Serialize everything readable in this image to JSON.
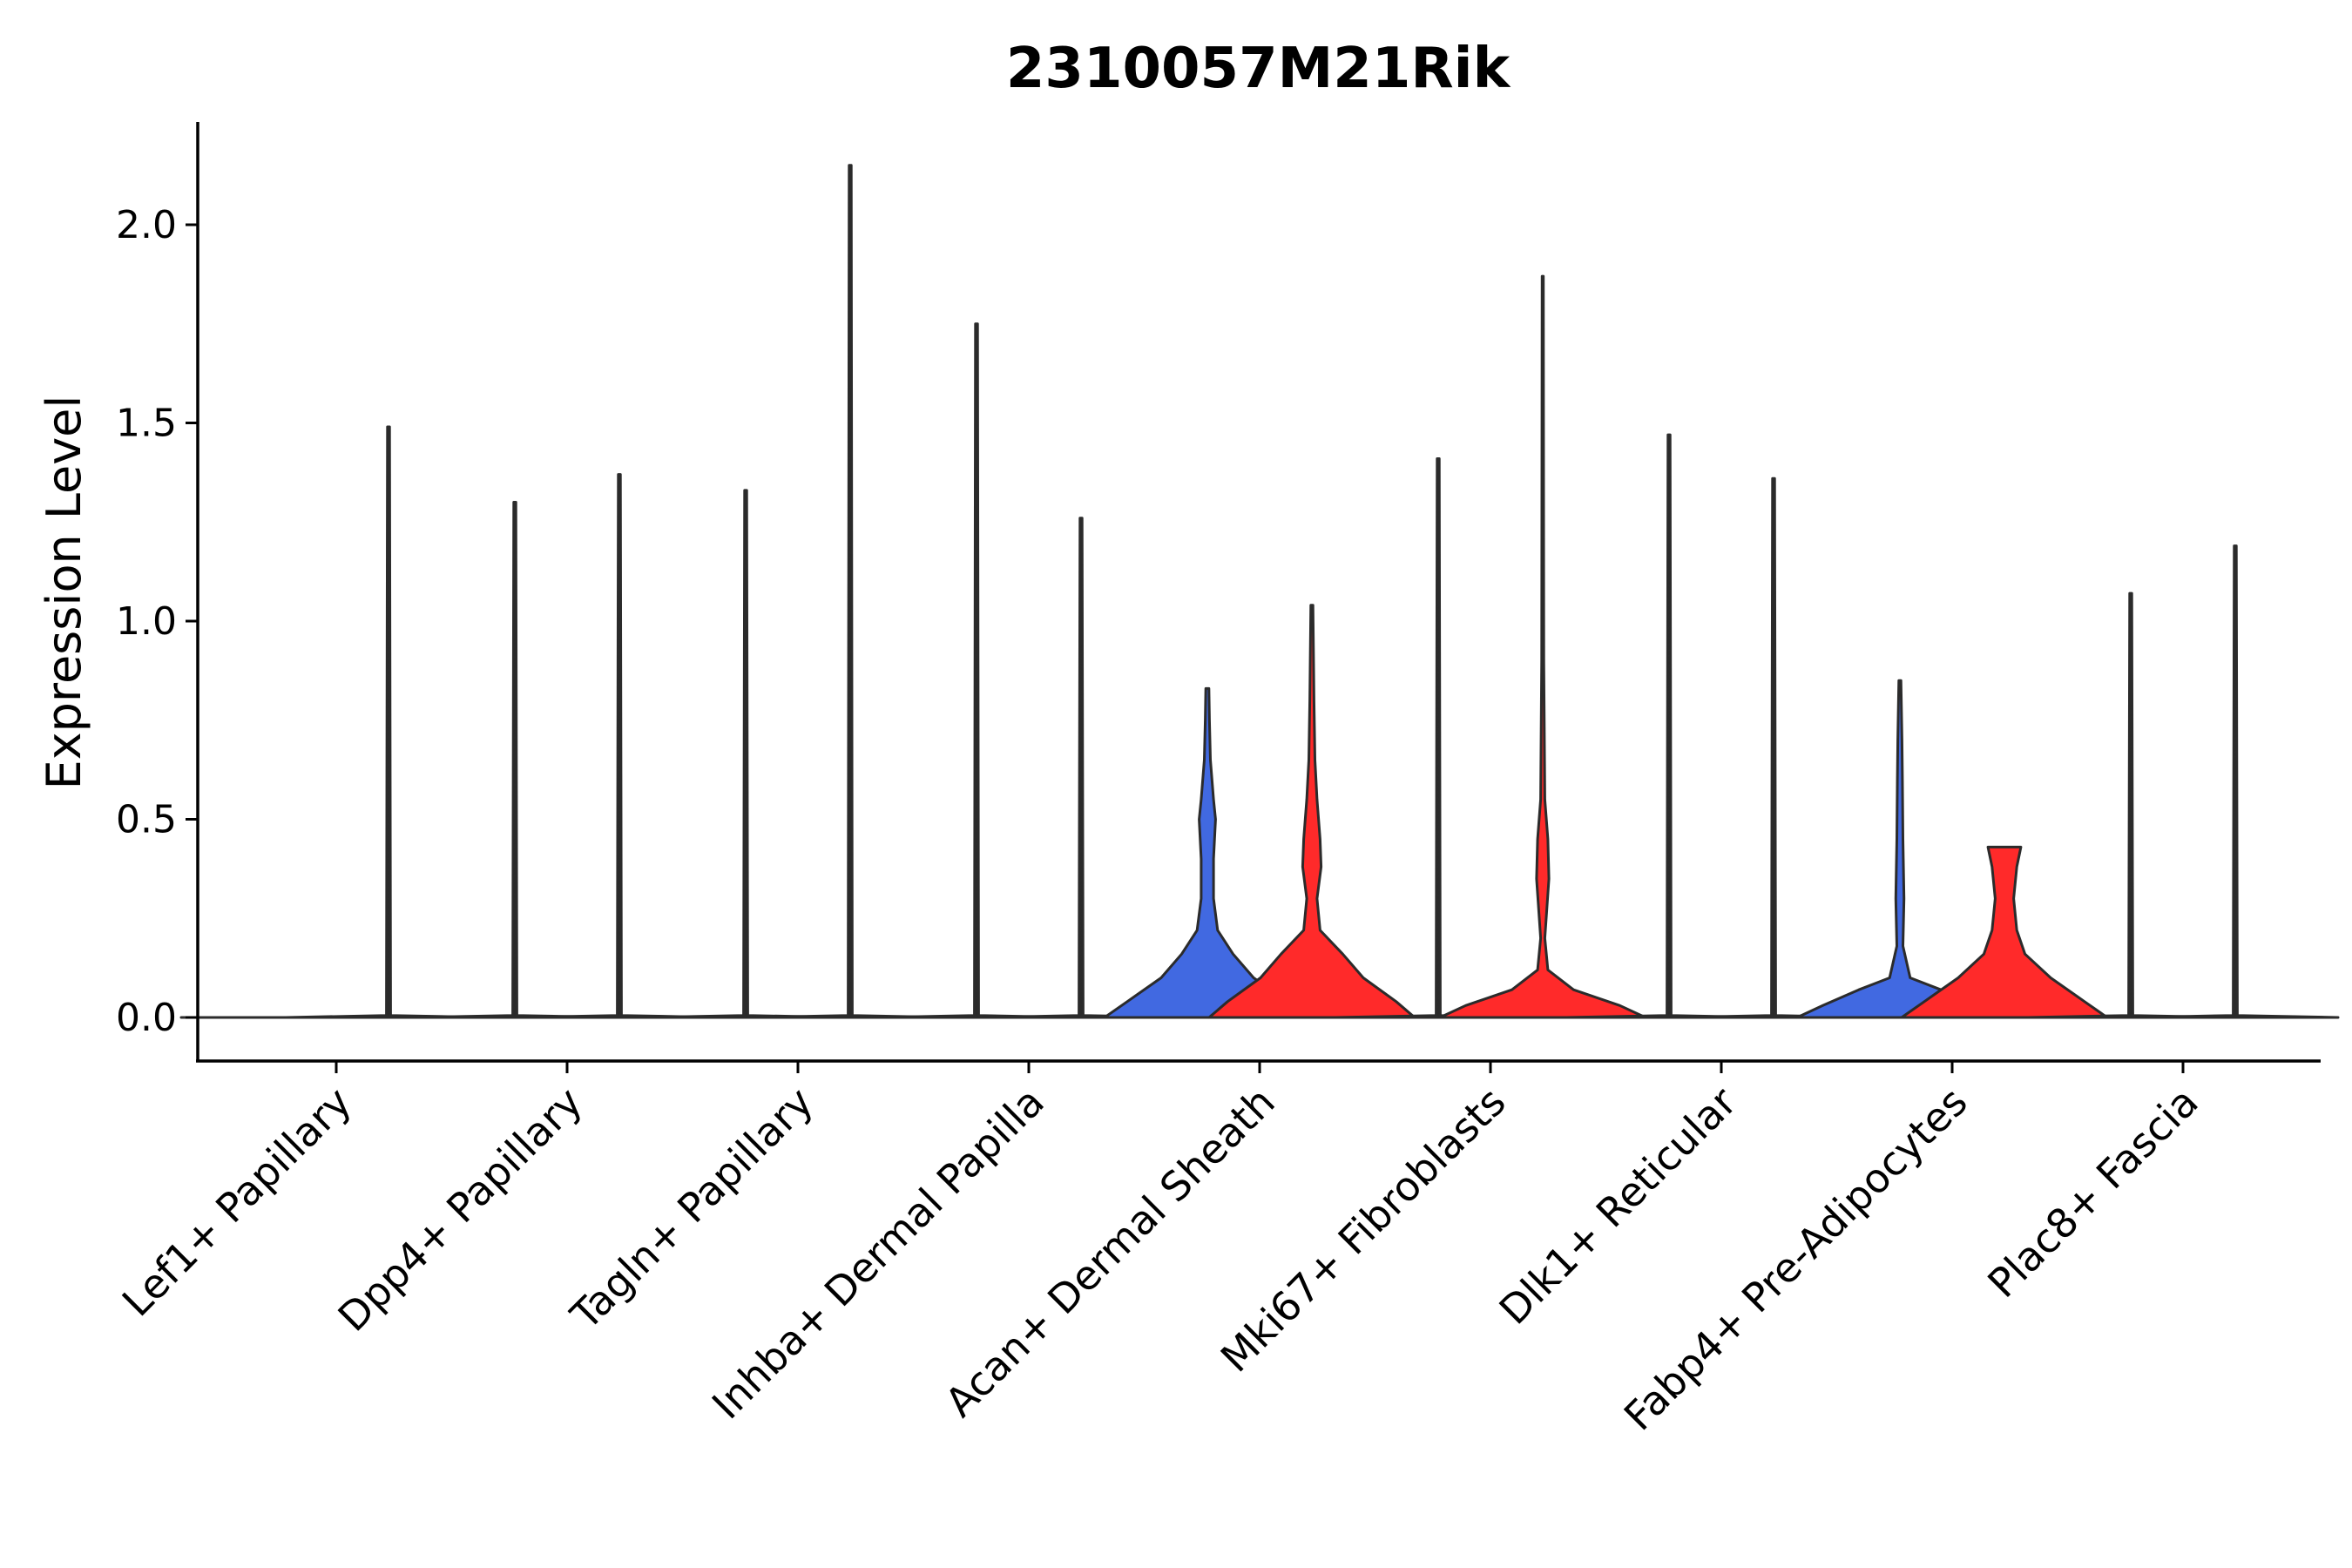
{
  "chart_data": {
    "type": "violin",
    "title": "2310057M21Rik",
    "xlabel": "",
    "ylabel": "Expression Level",
    "ylim": [
      -0.11,
      2.25
    ],
    "yticks": [
      "0.0",
      "0.5",
      "1.0",
      "1.5",
      "2.0"
    ],
    "ytick_values": [
      0.0,
      0.5,
      1.0,
      1.5,
      2.0
    ],
    "grid": false,
    "legend": "none",
    "group_colors": [
      "#4169E1",
      "#FF2A2A"
    ],
    "categories": [
      "Lef1+ Papillary",
      "Dpp4+ Papillary",
      "Tagln+ Papillary",
      "Inhba+ Dermal Papilla",
      "Acan+ Dermal Sheath",
      "Mki67+ Fibroblasts",
      "Dlk1+ Reticular",
      "Fabp4+ Pre-Adipocytes",
      "Plac8+ Fascia"
    ],
    "violins": [
      {
        "category": 0,
        "group": 0,
        "max": 0.0,
        "profile": [
          [
            0,
            1
          ]
        ]
      },
      {
        "category": 0,
        "group": 1,
        "max": 1.49,
        "profile": [
          [
            0,
            1
          ],
          [
            0.005,
            0.02
          ],
          [
            1.49,
            0.01
          ]
        ]
      },
      {
        "category": 1,
        "group": 0,
        "max": 1.3,
        "profile": [
          [
            0,
            1
          ],
          [
            0.005,
            0.02
          ],
          [
            1.3,
            0.01
          ]
        ]
      },
      {
        "category": 1,
        "group": 1,
        "max": 1.37,
        "profile": [
          [
            0,
            1
          ],
          [
            0.005,
            0.02
          ],
          [
            1.37,
            0.01
          ]
        ]
      },
      {
        "category": 2,
        "group": 0,
        "max": 1.33,
        "profile": [
          [
            0,
            1
          ],
          [
            0.005,
            0.02
          ],
          [
            1.33,
            0.01
          ]
        ]
      },
      {
        "category": 2,
        "group": 1,
        "max": 2.15,
        "profile": [
          [
            0,
            1
          ],
          [
            0.005,
            0.02
          ],
          [
            2.15,
            0.01
          ]
        ]
      },
      {
        "category": 3,
        "group": 0,
        "max": 1.75,
        "profile": [
          [
            0,
            1
          ],
          [
            0.005,
            0.02
          ],
          [
            1.75,
            0.01
          ]
        ]
      },
      {
        "category": 3,
        "group": 1,
        "max": 1.26,
        "profile": [
          [
            0,
            1
          ],
          [
            0.005,
            0.02
          ],
          [
            1.26,
            0.01
          ]
        ]
      },
      {
        "category": 4,
        "group": 0,
        "max": 0.83,
        "profile": [
          [
            0,
            1
          ],
          [
            0.04,
            0.78
          ],
          [
            0.1,
            0.45
          ],
          [
            0.16,
            0.25
          ],
          [
            0.22,
            0.1
          ],
          [
            0.3,
            0.06
          ],
          [
            0.4,
            0.06
          ],
          [
            0.5,
            0.08
          ],
          [
            0.55,
            0.06
          ],
          [
            0.65,
            0.03
          ],
          [
            0.75,
            0.02
          ],
          [
            0.83,
            0.015
          ]
        ]
      },
      {
        "category": 4,
        "group": 1,
        "max": 1.04,
        "profile": [
          [
            0,
            1
          ],
          [
            0.04,
            0.82
          ],
          [
            0.1,
            0.5
          ],
          [
            0.16,
            0.3
          ],
          [
            0.22,
            0.08
          ],
          [
            0.3,
            0.05
          ],
          [
            0.38,
            0.09
          ],
          [
            0.45,
            0.08
          ],
          [
            0.55,
            0.05
          ],
          [
            0.65,
            0.03
          ],
          [
            0.8,
            0.02
          ],
          [
            1.04,
            0.01
          ]
        ]
      },
      {
        "category": 5,
        "group": 0,
        "max": 1.41,
        "profile": [
          [
            0,
            1
          ],
          [
            0.005,
            0.02
          ],
          [
            1.41,
            0.01
          ]
        ]
      },
      {
        "category": 5,
        "group": 1,
        "max": 1.87,
        "profile": [
          [
            0,
            1
          ],
          [
            0.03,
            0.75
          ],
          [
            0.07,
            0.3
          ],
          [
            0.12,
            0.05
          ],
          [
            0.2,
            0.02
          ],
          [
            0.35,
            0.06
          ],
          [
            0.45,
            0.05
          ],
          [
            0.55,
            0.02
          ],
          [
            0.9,
            0.01
          ],
          [
            1.87,
            0.006
          ]
        ]
      },
      {
        "category": 6,
        "group": 0,
        "max": 1.47,
        "profile": [
          [
            0,
            1
          ],
          [
            0.005,
            0.02
          ],
          [
            1.47,
            0.01
          ]
        ]
      },
      {
        "category": 6,
        "group": 1,
        "max": 1.36,
        "profile": [
          [
            0,
            1
          ],
          [
            0.005,
            0.02
          ],
          [
            1.36,
            0.01
          ]
        ]
      },
      {
        "category": 7,
        "group": 0,
        "max": 0.85,
        "profile": [
          [
            0,
            1
          ],
          [
            0.03,
            0.75
          ],
          [
            0.07,
            0.4
          ],
          [
            0.1,
            0.1
          ],
          [
            0.18,
            0.03
          ],
          [
            0.3,
            0.04
          ],
          [
            0.45,
            0.03
          ],
          [
            0.6,
            0.025
          ],
          [
            0.7,
            0.02
          ],
          [
            0.85,
            0.01
          ]
        ]
      },
      {
        "category": 7,
        "group": 1,
        "max": 0.43,
        "profile": [
          [
            0,
            1
          ],
          [
            0.04,
            0.78
          ],
          [
            0.1,
            0.45
          ],
          [
            0.16,
            0.2
          ],
          [
            0.22,
            0.12
          ],
          [
            0.3,
            0.09
          ],
          [
            0.38,
            0.12
          ],
          [
            0.43,
            0.16
          ]
        ]
      },
      {
        "category": 8,
        "group": 0,
        "max": 1.07,
        "profile": [
          [
            0,
            1
          ],
          [
            0.005,
            0.02
          ],
          [
            1.07,
            0.01
          ]
        ]
      },
      {
        "category": 8,
        "group": 1,
        "max": 1.19,
        "profile": [
          [
            0,
            1
          ],
          [
            0.005,
            0.02
          ],
          [
            1.19,
            0.01
          ]
        ]
      }
    ]
  }
}
